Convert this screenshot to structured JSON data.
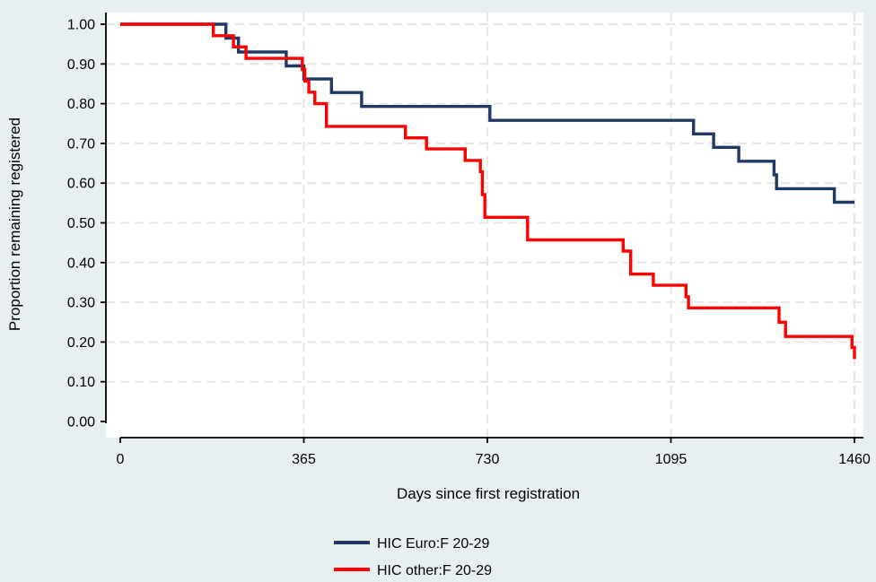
{
  "colors": {
    "background": "#e8eff1",
    "plot_background": "#ffffff",
    "grid": "#e6e6e6",
    "axis": "#000000"
  },
  "chart_data": {
    "type": "line",
    "step": true,
    "title": "",
    "xlabel": "Days since first registration",
    "ylabel": "Proportion remaining registered",
    "xlim": [
      0,
      1460
    ],
    "ylim": [
      0,
      1
    ],
    "x_ticks": [
      0,
      365,
      730,
      1095,
      1460
    ],
    "x_tick_labels": [
      "0",
      "365",
      "730",
      "1095",
      "1460"
    ],
    "y_ticks": [
      0,
      0.1,
      0.2,
      0.3,
      0.4,
      0.5,
      0.6,
      0.7,
      0.8,
      0.9,
      1.0
    ],
    "y_tick_labels": [
      "0.00",
      "0.10",
      "0.20",
      "0.30",
      "0.40",
      "0.50",
      "0.60",
      "0.70",
      "0.80",
      "0.90",
      "1.00"
    ],
    "grid": true,
    "legend_position": "bottom-center",
    "series": [
      {
        "name": "HIC Euro:F 20-29",
        "color": "#1f3864",
        "x": [
          0,
          190,
          210,
          235,
          330,
          365,
          420,
          480,
          735,
          1140,
          1180,
          1230,
          1300,
          1305,
          1420,
          1460
        ],
        "y": [
          1.0,
          1.0,
          0.965,
          0.93,
          0.895,
          0.862,
          0.828,
          0.793,
          0.758,
          0.724,
          0.69,
          0.655,
          0.621,
          0.586,
          0.552,
          0.552
        ]
      },
      {
        "name": "HIC other:F 20-29",
        "color": "#ff0000",
        "x": [
          0,
          160,
          185,
          225,
          250,
          362,
          367,
          375,
          387,
          410,
          567,
          609,
          686,
          716,
          720,
          725,
          810,
          1000,
          1015,
          1060,
          1125,
          1130,
          1310,
          1323,
          1455,
          1460
        ],
        "y": [
          1.0,
          1.0,
          0.971,
          0.943,
          0.914,
          0.886,
          0.857,
          0.829,
          0.8,
          0.743,
          0.714,
          0.686,
          0.657,
          0.629,
          0.571,
          0.514,
          0.457,
          0.429,
          0.371,
          0.343,
          0.314,
          0.286,
          0.25,
          0.214,
          0.186,
          0.157
        ]
      }
    ]
  }
}
